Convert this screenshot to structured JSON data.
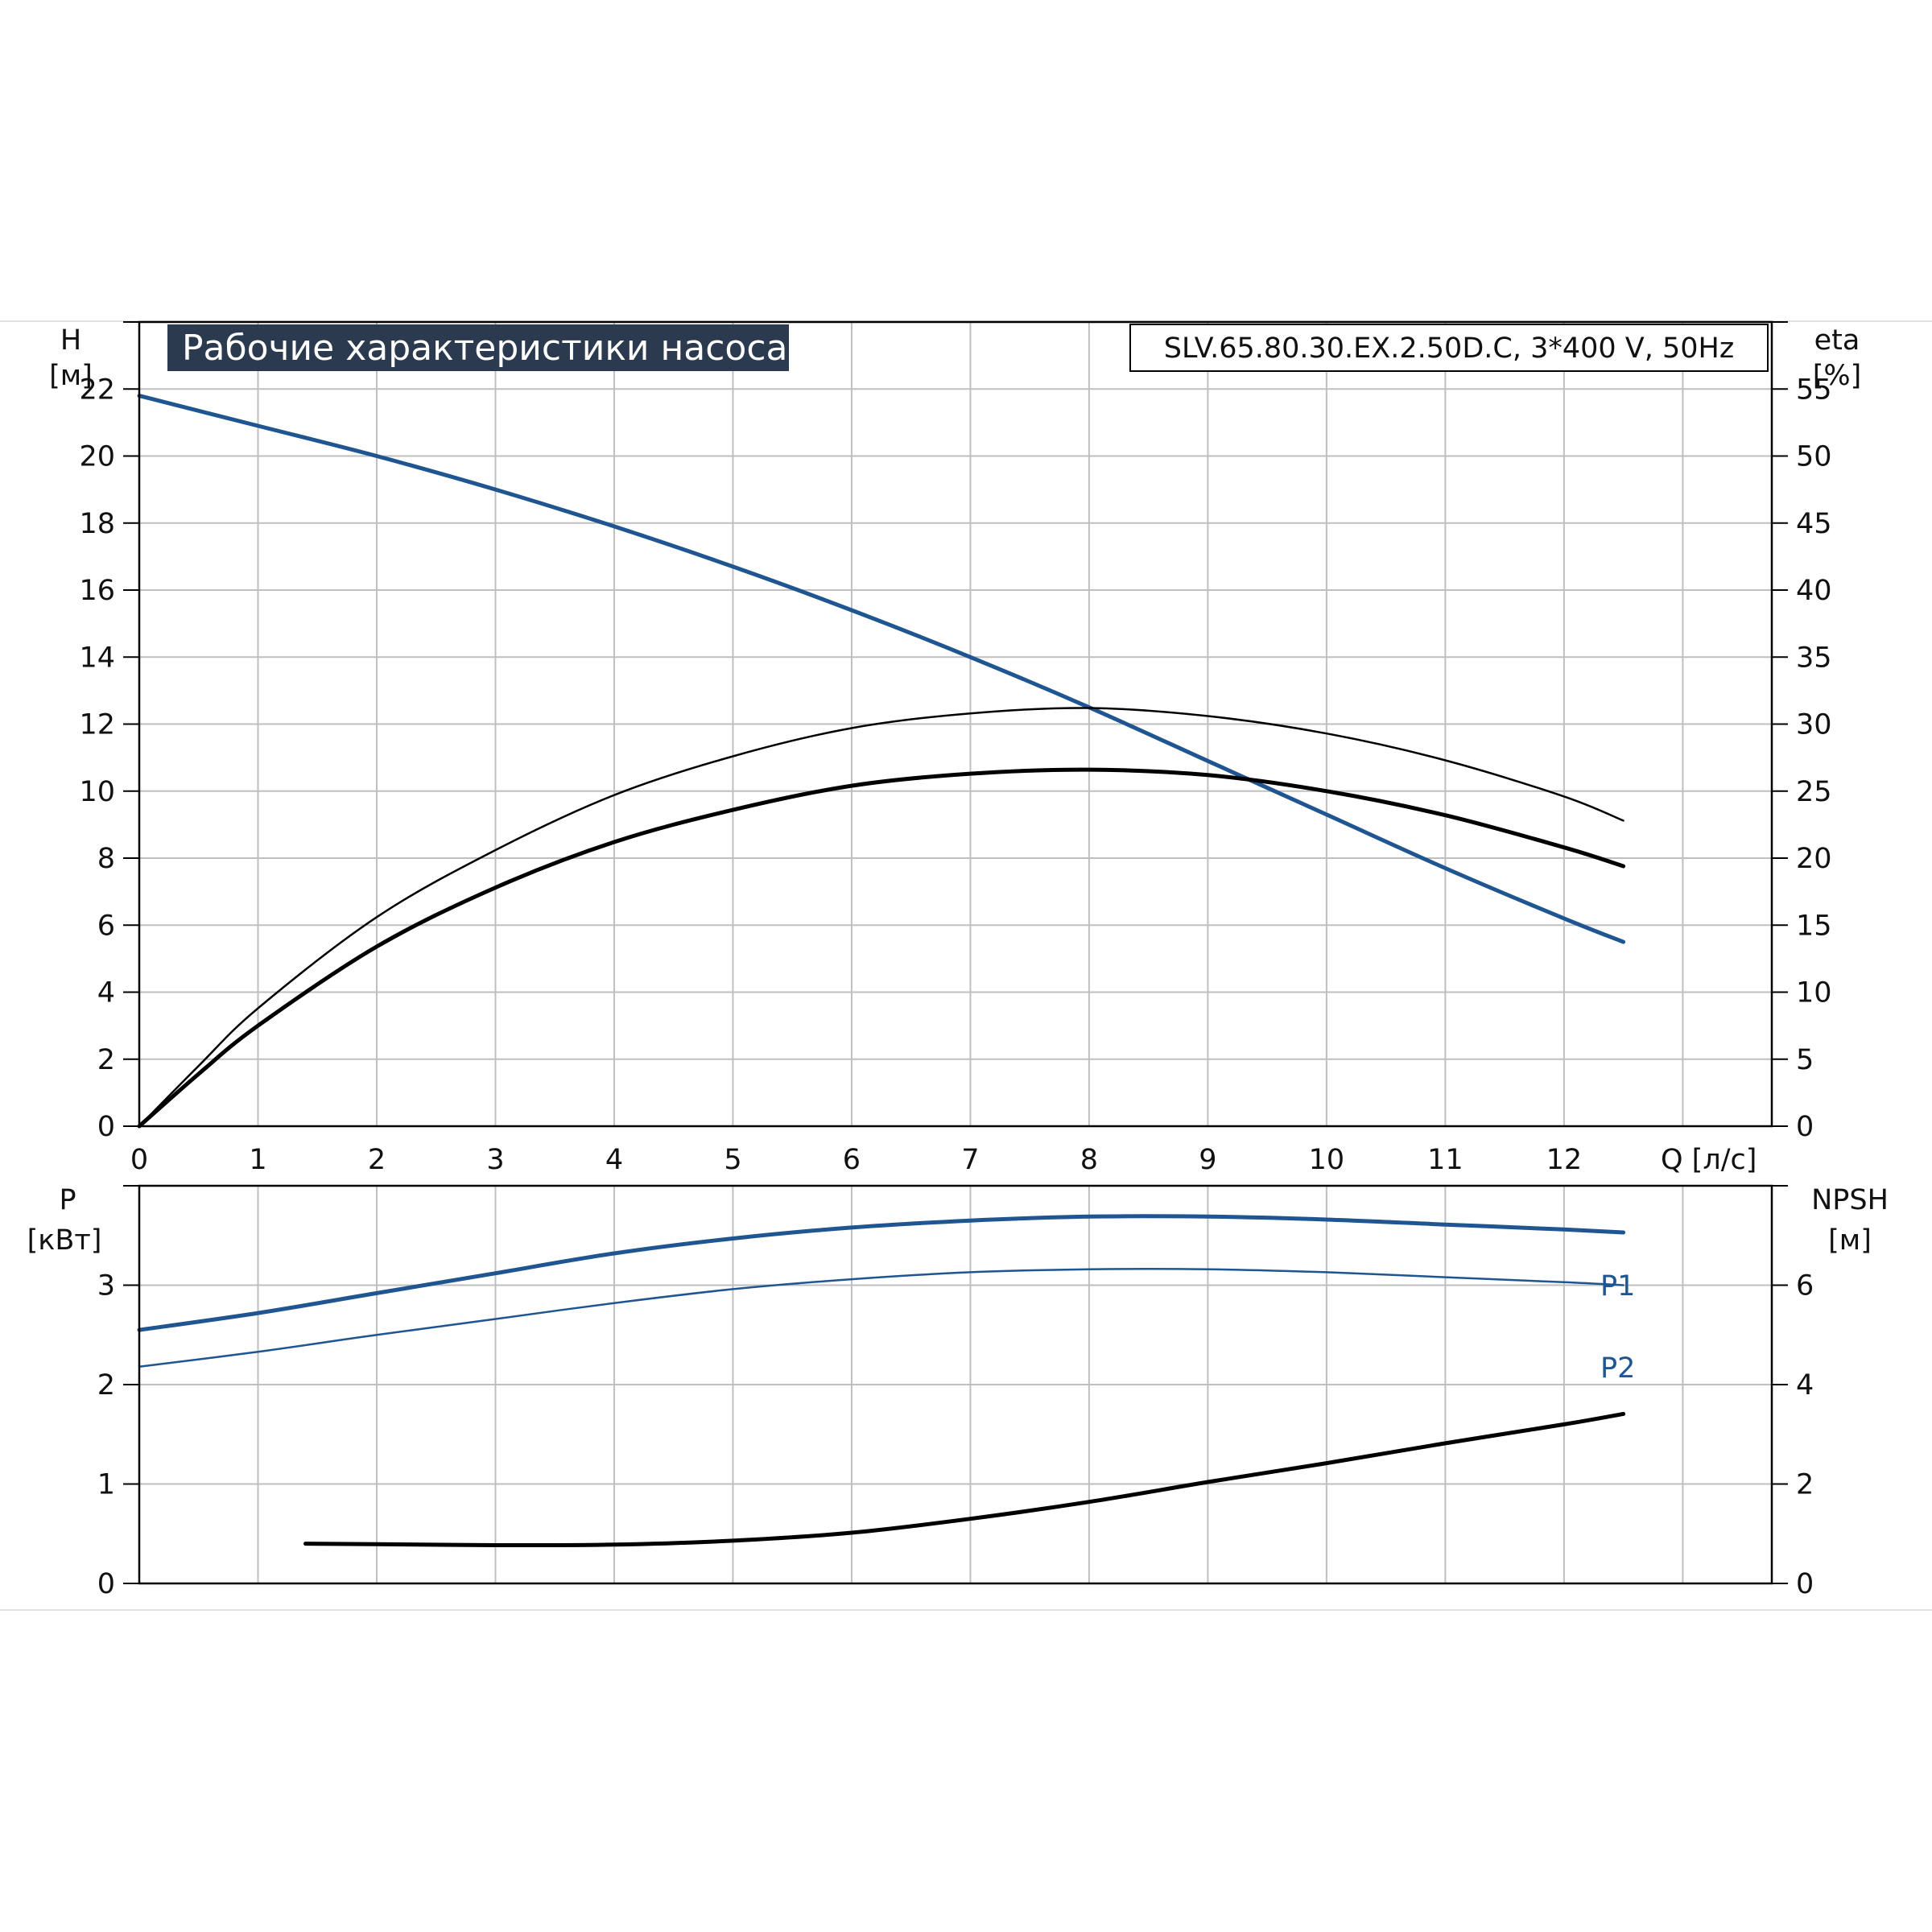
{
  "title": "Рабочие характеристики насоса",
  "model": "SLV.65.80.30.EX.2.50D.C, 3*400 V, 50Hz",
  "colors": {
    "blue": "#1f5590",
    "black": "#000000",
    "title_bg": "#2b3a4f"
  },
  "top_axes": {
    "left_unit_line1": "H",
    "left_unit_line2": "[м]",
    "right_unit_line1": "eta",
    "right_unit_line2": "[%]",
    "x_label": "Q [л/с]"
  },
  "bottom_axes": {
    "left_unit_line1": "P",
    "left_unit_line2": "[кВт]",
    "right_unit_line1": "NPSH",
    "right_unit_line2": "[м]"
  },
  "chart_data": [
    {
      "type": "line",
      "panel": "top",
      "x_ticks": [
        0,
        1,
        2,
        3,
        4,
        5,
        6,
        7,
        8,
        9,
        10,
        11,
        12
      ],
      "xlim": [
        0,
        13.75
      ],
      "y_left_ticks": [
        0,
        2,
        4,
        6,
        8,
        10,
        12,
        14,
        16,
        18,
        20,
        22
      ],
      "ylim_left": [
        0,
        24
      ],
      "y_right_ticks": [
        0,
        5,
        10,
        15,
        20,
        25,
        30,
        35,
        40,
        45,
        50,
        55
      ],
      "ylim_right": [
        0,
        60
      ],
      "grid": true,
      "series": [
        {
          "axis": "left",
          "color": "blue",
          "width": 5,
          "x": [
            0,
            1,
            2,
            3,
            4,
            5,
            6,
            7,
            8,
            9,
            10,
            11,
            12,
            12.5
          ],
          "y": [
            21.8,
            20.9,
            20.0,
            19.0,
            17.9,
            16.7,
            15.4,
            14.0,
            12.5,
            10.9,
            9.3,
            7.7,
            6.2,
            5.5
          ]
        },
        {
          "axis": "right",
          "color": "black",
          "width": 2.5,
          "x": [
            0,
            0.5,
            1,
            2,
            3,
            4,
            5,
            6,
            7,
            8,
            9,
            10,
            11,
            12,
            12.5
          ],
          "y": [
            0,
            4.5,
            8.8,
            15.6,
            20.6,
            24.7,
            27.6,
            29.7,
            30.8,
            31.2,
            30.6,
            29.3,
            27.3,
            24.6,
            22.8
          ]
        },
        {
          "axis": "right",
          "color": "black",
          "width": 5,
          "x": [
            0,
            0.5,
            1,
            2,
            3,
            4,
            5,
            6,
            7,
            8,
            9,
            10,
            11,
            12,
            12.5
          ],
          "y": [
            0,
            3.9,
            7.5,
            13.4,
            17.8,
            21.2,
            23.6,
            25.4,
            26.3,
            26.6,
            26.2,
            25.0,
            23.2,
            20.8,
            19.4
          ]
        }
      ]
    },
    {
      "type": "line",
      "panel": "bottom",
      "x_ticks": [
        0,
        1,
        2,
        3,
        4,
        5,
        6,
        7,
        8,
        9,
        10,
        11,
        12
      ],
      "xlim": [
        0,
        13.75
      ],
      "y_left_ticks": [
        0,
        1,
        2,
        3
      ],
      "ylim_left": [
        0,
        4
      ],
      "y_right_ticks": [
        0,
        2,
        4,
        6
      ],
      "ylim_right": [
        0,
        8
      ],
      "grid": true,
      "series": [
        {
          "name": "P1",
          "axis": "left",
          "color": "blue",
          "width": 5,
          "x": [
            0,
            1,
            2,
            3,
            4,
            5,
            6,
            7,
            8,
            9,
            10,
            11,
            12,
            12.5
          ],
          "y": [
            2.55,
            2.72,
            2.92,
            3.12,
            3.32,
            3.47,
            3.58,
            3.65,
            3.69,
            3.69,
            3.66,
            3.61,
            3.56,
            3.53
          ]
        },
        {
          "name": "P2",
          "axis": "left",
          "color": "blue",
          "width": 2.5,
          "x": [
            0,
            1,
            2,
            3,
            4,
            5,
            6,
            7,
            8,
            9,
            10,
            11,
            12,
            12.5
          ],
          "y": [
            2.18,
            2.33,
            2.5,
            2.66,
            2.82,
            2.96,
            3.06,
            3.13,
            3.16,
            3.16,
            3.13,
            3.08,
            3.03,
            3.0
          ]
        },
        {
          "axis": "right",
          "color": "black",
          "width": 5,
          "x": [
            1.4,
            2,
            3,
            4,
            5,
            6,
            7,
            8,
            9,
            10,
            11,
            12,
            12.5
          ],
          "y": [
            0.8,
            0.79,
            0.77,
            0.78,
            0.86,
            1.02,
            1.3,
            1.64,
            2.04,
            2.42,
            2.82,
            3.2,
            3.41
          ]
        }
      ]
    }
  ]
}
